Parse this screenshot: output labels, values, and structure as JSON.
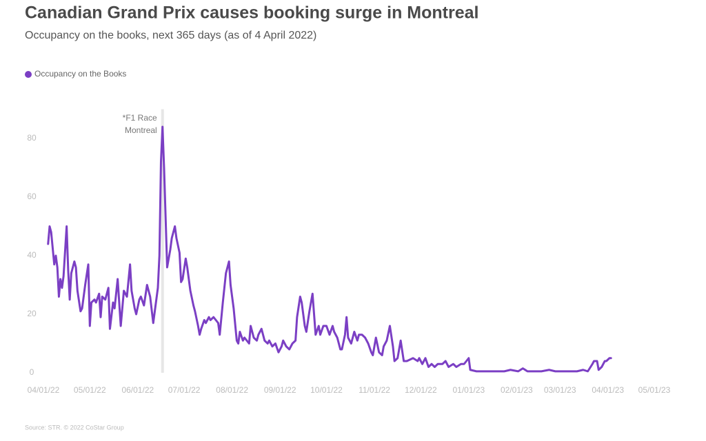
{
  "chart_data": {
    "type": "line",
    "title": "Canadian Grand Prix causes booking surge in Montreal",
    "subtitle": "Occupancy on the books, next 365 days (as of 4 April 2022)",
    "source": "Source: STR. © 2022 CoStar Group",
    "annotation": {
      "x": "2022-06-17",
      "lines": [
        "*F1 Race",
        "Montreal"
      ]
    },
    "xlim": [
      "2022-04-01",
      "2023-05-01"
    ],
    "xticks": [
      {
        "value": "2022-04-01",
        "label": "04/01/22"
      },
      {
        "value": "2022-05-01",
        "label": "05/01/22"
      },
      {
        "value": "2022-06-01",
        "label": "06/01/22"
      },
      {
        "value": "2022-07-01",
        "label": "07/01/22"
      },
      {
        "value": "2022-08-01",
        "label": "08/01/22"
      },
      {
        "value": "2022-09-01",
        "label": "09/01/22"
      },
      {
        "value": "2022-10-01",
        "label": "10/01/22"
      },
      {
        "value": "2022-11-01",
        "label": "11/01/22"
      },
      {
        "value": "2022-12-01",
        "label": "12/01/22"
      },
      {
        "value": "2023-01-01",
        "label": "01/01/23"
      },
      {
        "value": "2023-02-01",
        "label": "02/01/23"
      },
      {
        "value": "2023-03-01",
        "label": "03/01/23"
      },
      {
        "value": "2023-04-01",
        "label": "04/01/23"
      },
      {
        "value": "2023-05-01",
        "label": "05/01/23"
      }
    ],
    "ylim": [
      0,
      90
    ],
    "yticks": [
      0,
      20,
      40,
      60,
      80
    ],
    "grid": false,
    "legend": "top-left",
    "x": [
      "2022-04-04",
      "2022-04-05",
      "2022-04-06",
      "2022-04-08",
      "2022-04-09",
      "2022-04-10",
      "2022-04-11",
      "2022-04-12",
      "2022-04-13",
      "2022-04-14",
      "2022-04-16",
      "2022-04-17",
      "2022-04-18",
      "2022-04-19",
      "2022-04-21",
      "2022-04-22",
      "2022-04-23",
      "2022-04-25",
      "2022-04-26",
      "2022-04-28",
      "2022-04-30",
      "2022-05-01",
      "2022-05-02",
      "2022-05-04",
      "2022-05-05",
      "2022-05-07",
      "2022-05-08",
      "2022-05-09",
      "2022-05-11",
      "2022-05-13",
      "2022-05-14",
      "2022-05-16",
      "2022-05-17",
      "2022-05-19",
      "2022-05-20",
      "2022-05-21",
      "2022-05-23",
      "2022-05-25",
      "2022-05-27",
      "2022-05-28",
      "2022-05-30",
      "2022-05-31",
      "2022-06-02",
      "2022-06-03",
      "2022-06-05",
      "2022-06-07",
      "2022-06-09",
      "2022-06-11",
      "2022-06-13",
      "2022-06-14",
      "2022-06-15",
      "2022-06-16",
      "2022-06-17",
      "2022-06-18",
      "2022-06-20",
      "2022-06-22",
      "2022-06-23",
      "2022-06-25",
      "2022-06-26",
      "2022-06-28",
      "2022-06-29",
      "2022-06-30",
      "2022-07-02",
      "2022-07-03",
      "2022-07-05",
      "2022-07-07",
      "2022-07-08",
      "2022-07-10",
      "2022-07-11",
      "2022-07-12",
      "2022-07-14",
      "2022-07-15",
      "2022-07-17",
      "2022-07-18",
      "2022-07-20",
      "2022-07-23",
      "2022-07-24",
      "2022-07-26",
      "2022-07-28",
      "2022-07-30",
      "2022-07-31",
      "2022-08-02",
      "2022-08-04",
      "2022-08-05",
      "2022-08-06",
      "2022-08-08",
      "2022-08-09",
      "2022-08-12",
      "2022-08-13",
      "2022-08-15",
      "2022-08-17",
      "2022-08-18",
      "2022-08-20",
      "2022-08-22",
      "2022-08-24",
      "2022-08-25",
      "2022-08-27",
      "2022-08-29",
      "2022-08-31",
      "2022-09-02",
      "2022-09-03",
      "2022-09-05",
      "2022-09-07",
      "2022-09-09",
      "2022-09-11",
      "2022-09-12",
      "2022-09-14",
      "2022-09-15",
      "2022-09-17",
      "2022-09-18",
      "2022-09-20",
      "2022-09-22",
      "2022-09-24",
      "2022-09-26",
      "2022-09-27",
      "2022-09-29",
      "2022-10-01",
      "2022-10-03",
      "2022-10-05",
      "2022-10-06",
      "2022-10-08",
      "2022-10-10",
      "2022-10-11",
      "2022-10-13",
      "2022-10-14",
      "2022-10-15",
      "2022-10-17",
      "2022-10-19",
      "2022-10-21",
      "2022-10-22",
      "2022-10-24",
      "2022-10-26",
      "2022-10-28",
      "2022-10-30",
      "2022-10-31",
      "2022-11-02",
      "2022-11-04",
      "2022-11-06",
      "2022-11-07",
      "2022-11-09",
      "2022-11-11",
      "2022-11-13",
      "2022-11-14",
      "2022-11-16",
      "2022-11-17",
      "2022-11-18",
      "2022-11-20",
      "2022-11-22",
      "2022-11-26",
      "2022-11-29",
      "2022-11-30",
      "2022-12-02",
      "2022-12-04",
      "2022-12-06",
      "2022-12-08",
      "2022-12-10",
      "2022-12-12",
      "2022-12-15",
      "2022-12-17",
      "2022-12-19",
      "2022-12-22",
      "2022-12-24",
      "2022-12-27",
      "2022-12-29",
      "2023-01-01",
      "2023-01-02",
      "2023-01-06",
      "2023-01-10",
      "2023-01-15",
      "2023-01-19",
      "2023-01-24",
      "2023-01-28",
      "2023-02-02",
      "2023-02-05",
      "2023-02-08",
      "2023-02-13",
      "2023-02-17",
      "2023-02-22",
      "2023-02-26",
      "2023-03-03",
      "2023-03-07",
      "2023-03-12",
      "2023-03-16",
      "2023-03-19",
      "2023-03-22",
      "2023-03-23",
      "2023-03-25",
      "2023-03-26",
      "2023-03-28",
      "2023-03-30",
      "2023-03-31",
      "2023-04-02",
      "2023-04-03"
    ],
    "series": [
      {
        "name": "Occupancy on the Books",
        "color": "#7b3fc4",
        "values": [
          44,
          50,
          48,
          37,
          40,
          36,
          26,
          32,
          29,
          33,
          50,
          35,
          25,
          34,
          38,
          36,
          28,
          21,
          22,
          30,
          37,
          16,
          24,
          25,
          24,
          27,
          19,
          26,
          25,
          29,
          15,
          24,
          22,
          32,
          24,
          16,
          28,
          26,
          37,
          28,
          22,
          20,
          25,
          26,
          23,
          30,
          26,
          17,
          25,
          29,
          40,
          72,
          84,
          70,
          36,
          42,
          46,
          50,
          46,
          41,
          31,
          32,
          39,
          36,
          28,
          23,
          21,
          16,
          13,
          15,
          18,
          17,
          19,
          18,
          19,
          17,
          13,
          24,
          34,
          38,
          30,
          22,
          11,
          10,
          14,
          11,
          12,
          10,
          16,
          12,
          11,
          13,
          15,
          11,
          10,
          11,
          9,
          10,
          7,
          9,
          11,
          9,
          8,
          10,
          11,
          19,
          26,
          24,
          16,
          14,
          21,
          27,
          13,
          16,
          13,
          16,
          16,
          13,
          16,
          14,
          12,
          8,
          8,
          13,
          19,
          12,
          10,
          14,
          11,
          13,
          13,
          12,
          10,
          7,
          6,
          12,
          7,
          6,
          9,
          11,
          16,
          9,
          4,
          5,
          8,
          11,
          4,
          4,
          5,
          4,
          5,
          3,
          5,
          2,
          3,
          2,
          3,
          3,
          4,
          2,
          3,
          2,
          3,
          3,
          5,
          1,
          0.5,
          0.5,
          0.5,
          0.5,
          0.5,
          1,
          0.5,
          1.5,
          0.5,
          0.5,
          0.5,
          1,
          0.5,
          0.5,
          0.5,
          0.5,
          1,
          0.5,
          3,
          4,
          4,
          1,
          2,
          4,
          4,
          5,
          5
        ]
      }
    ]
  }
}
